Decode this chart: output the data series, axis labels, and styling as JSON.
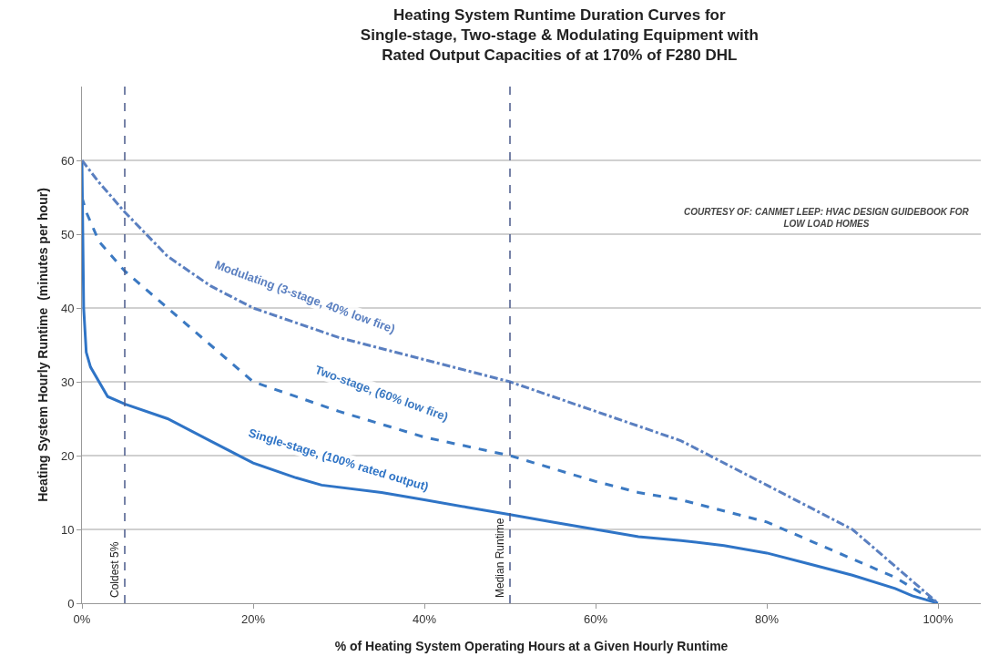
{
  "chart_data": {
    "type": "line",
    "title": "Heating System Runtime Duration Curves for\nSingle-stage, Two-stage & Modulating Equipment with\nRated Output Capacities of at 170% of F280 DHL",
    "xlabel": "% of Heating System Operating Hours at a Given Hourly Runtime",
    "ylabel": "Heating System Hourly Runtime  (minutes per hour)",
    "xlim": [
      0,
      105
    ],
    "xticks": [
      {
        "value": 0,
        "label": "0%"
      },
      {
        "value": 20,
        "label": "20%"
      },
      {
        "value": 40,
        "label": "40%"
      },
      {
        "value": 60,
        "label": "60%"
      },
      {
        "value": 80,
        "label": "80%"
      },
      {
        "value": 100,
        "label": "100%"
      }
    ],
    "ylim": [
      0,
      70
    ],
    "yticks": [
      0,
      10,
      20,
      30,
      40,
      50,
      60
    ],
    "grid": "y",
    "legend": false,
    "series": [
      {
        "name": "Single-stage, (100% rated output)",
        "color": "#2f74c6",
        "line_style": "solid",
        "x": [
          0,
          0.2,
          0.5,
          1,
          3,
          5,
          10,
          15,
          20,
          25,
          28,
          35,
          40,
          45,
          50,
          55,
          60,
          65,
          70,
          75,
          80,
          85,
          90,
          95,
          97,
          100
        ],
        "values": [
          60,
          40,
          34,
          32,
          28,
          27,
          25,
          22,
          19,
          17,
          16,
          15,
          14,
          13,
          12,
          11,
          10,
          9,
          8.5,
          7.8,
          6.8,
          5.3,
          3.8,
          2,
          1,
          0
        ]
      },
      {
        "name": "Two-stage, (60% low fire)",
        "color": "#3b79c2",
        "line_style": "dashed",
        "x": [
          0,
          0.5,
          2,
          5,
          10,
          15,
          20,
          25,
          30,
          40,
          50,
          60,
          65,
          70,
          80,
          85,
          90,
          95,
          100
        ],
        "values": [
          55,
          53,
          49,
          45,
          40,
          35,
          30,
          28,
          26,
          22.5,
          20,
          16.5,
          15,
          14,
          11,
          8.5,
          6,
          3.5,
          0
        ]
      },
      {
        "name": "Modulating (3-stage, 40% low fire)",
        "color": "#5a7fc0",
        "line_style": "dashdot",
        "x": [
          0,
          2,
          5,
          10,
          15,
          20,
          30,
          40,
          50,
          60,
          70,
          80,
          85,
          90,
          95,
          100
        ],
        "values": [
          60,
          57,
          53,
          47,
          43,
          40,
          36,
          33,
          30,
          26,
          22,
          16,
          13,
          10,
          5,
          0
        ]
      }
    ],
    "ref_lines": [
      {
        "axis": "x",
        "value": 5,
        "label": "Coldest 5%",
        "color": "#4a5a8a",
        "line_style": "dashed"
      },
      {
        "axis": "x",
        "value": 50,
        "label": "Median Runtime",
        "color": "#4a5a8a",
        "line_style": "dashed"
      }
    ],
    "annotations": [
      "COURTESY OF: CANMET LEEP: HVAC DESIGN GUIDEBOOK FOR\nLOW LOAD HOMES"
    ]
  }
}
